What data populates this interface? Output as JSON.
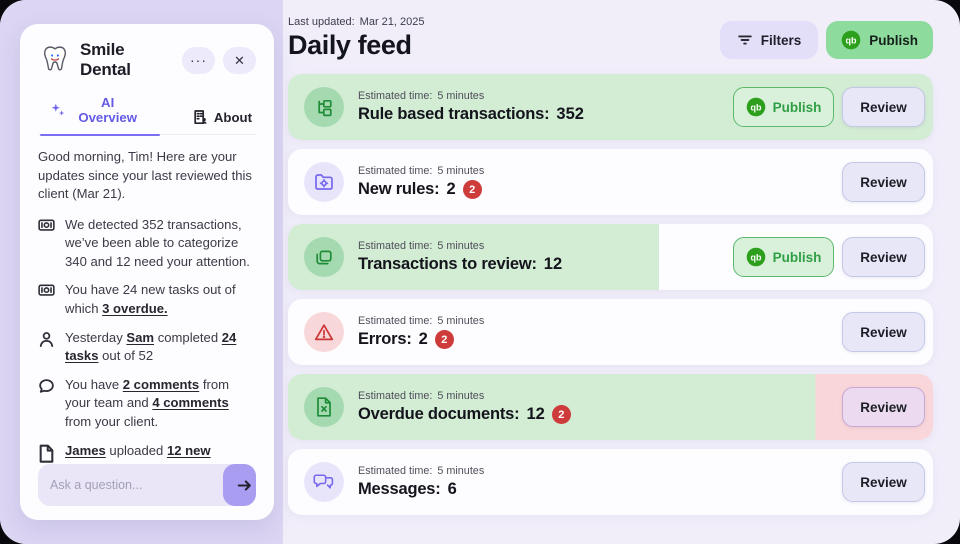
{
  "sidebar": {
    "logo_icon": "tooth-logo",
    "title": "Smile Dental",
    "menu_icon": "ellipsis-icon",
    "close_icon": "close-icon",
    "tabs": [
      {
        "label": "AI Overview",
        "icon": "sparkles-icon"
      },
      {
        "label": "About",
        "icon": "building-icon"
      }
    ],
    "greeting": "Good morning, Tim! Here are your updates since your last reviewed this client (Mar 21).",
    "bullets": [
      {
        "icon": "cash-icon",
        "segments": [
          {
            "t": "We detected 352 transactions, we’ve been able to categorize 340 and 12 need your attention."
          }
        ]
      },
      {
        "icon": "cash-icon",
        "segments": [
          {
            "t": "You have 24 new tasks out of which "
          },
          {
            "t": "3 overdue.",
            "em": true
          }
        ]
      },
      {
        "icon": "person-icon",
        "segments": [
          {
            "t": "Yesterday "
          },
          {
            "t": "Sam",
            "em": true
          },
          {
            "t": " completed "
          },
          {
            "t": "24 tasks",
            "em": true
          },
          {
            "t": " out of 52"
          }
        ]
      },
      {
        "icon": "comment-icon",
        "segments": [
          {
            "t": "You have "
          },
          {
            "t": "2 comments",
            "em": true
          },
          {
            "t": " from your team and "
          },
          {
            "t": "4 comments",
            "em": true
          },
          {
            "t": " from your client."
          }
        ]
      },
      {
        "icon": "document-icon",
        "segments": [
          {
            "t": "James",
            "em": true
          },
          {
            "t": " uploaded "
          },
          {
            "t": "12 new",
            "em": true
          }
        ]
      }
    ],
    "ask": {
      "placeholder": "Ask a question...",
      "send_icon": "arrow-right-icon"
    }
  },
  "main": {
    "last_updated_label": "Last updated:",
    "last_updated_value": "Mar 21, 2025",
    "title": "Daily feed",
    "filters_button": "Filters",
    "filter_icon": "filter-icon",
    "publish_button": "Publish",
    "publish_icon": "qb-icon"
  },
  "feed": {
    "publish_label": "Publish",
    "review_label": "Review",
    "cards": [
      {
        "name": "rule-based-transactions",
        "icon": "rule-tree-icon",
        "icon_bg": "#a5dab1",
        "icon_color": "#1f8c37",
        "estimated_label": "Estimated time:",
        "estimated_value": "5 minutes",
        "title": "Rule based transactions:",
        "count": "352",
        "badge": null,
        "publish": true,
        "variant": "green"
      },
      {
        "name": "new-rules",
        "icon": "folder-gear-icon",
        "icon_bg": "#e8e5fb",
        "icon_color": "#7568ee",
        "estimated_label": "Estimated time:",
        "estimated_value": "5 minutes",
        "title": "New rules:",
        "count": "2",
        "badge": "2",
        "publish": false,
        "variant": "white"
      },
      {
        "name": "transactions-to-review",
        "icon": "copy-folders-icon",
        "icon_bg": "#a5dab1",
        "icon_color": "#1f8c37",
        "estimated_label": "Estimated time:",
        "estimated_value": "5 minutes",
        "title": "Transactions to review:",
        "count": "12",
        "badge": null,
        "publish": true,
        "variant": "split-green"
      },
      {
        "name": "errors",
        "icon": "warning-icon",
        "icon_bg": "#f8d7da",
        "icon_color": "#cc3636",
        "estimated_label": "Estimated time:",
        "estimated_value": "5 minutes",
        "title": "Errors:",
        "count": "2",
        "badge": "2",
        "publish": false,
        "variant": "white"
      },
      {
        "name": "overdue-documents",
        "icon": "file-x-icon",
        "icon_bg": "#a5dab1",
        "icon_color": "#1f8c37",
        "estimated_label": "Estimated time:",
        "estimated_value": "5 minutes",
        "title": "Overdue documents:",
        "count": "12",
        "badge": "2",
        "publish": false,
        "variant": "split-red"
      },
      {
        "name": "messages",
        "icon": "chat-bubbles-icon",
        "icon_bg": "#e8e5fb",
        "icon_color": "#7568ee",
        "estimated_label": "Estimated time:",
        "estimated_value": "5 minutes",
        "title": "Messages:",
        "count": "6",
        "badge": null,
        "publish": false,
        "variant": "white"
      }
    ]
  },
  "colors": {
    "accent_purple": "#7468ee",
    "qb_green": "#2CA01C",
    "publish_green": "#8edb9e",
    "card_green": "#d3ecd4",
    "card_red": "#f9d6d9",
    "badge_red": "#ce3b3b"
  }
}
